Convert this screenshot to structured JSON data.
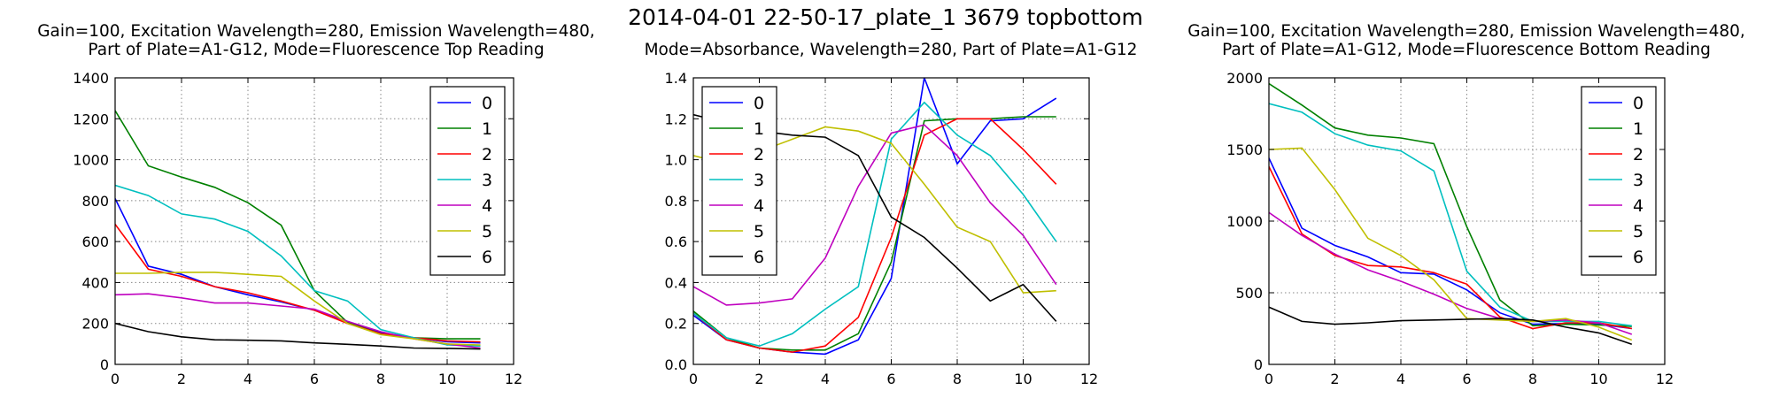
{
  "suptitle": "2014-04-01 22-50-17_plate_1 3679 topbottom",
  "chart_data": [
    {
      "type": "line",
      "title_lines": [
        "Gain=100, Excitation Wavelength=280, Emission Wavelength=480,",
        "Part of Plate=A1-G12, Mode=Fluorescence Top Reading"
      ],
      "xlim": [
        0,
        12
      ],
      "ylim": [
        0,
        1400
      ],
      "xticks": [
        0,
        2,
        4,
        6,
        8,
        10,
        12
      ],
      "yticks": [
        0,
        200,
        400,
        600,
        800,
        1000,
        1200,
        1400
      ],
      "grid": true,
      "legend_position": "top-right",
      "x": [
        0,
        1,
        2,
        3,
        4,
        5,
        6,
        7,
        8,
        9,
        10,
        11
      ],
      "series": [
        {
          "name": "0",
          "color": "#0000ff",
          "values": [
            810,
            480,
            440,
            380,
            340,
            305,
            265,
            210,
            155,
            130,
            110,
            105
          ]
        },
        {
          "name": "1",
          "color": "#008000",
          "values": [
            1240,
            970,
            915,
            865,
            790,
            680,
            360,
            205,
            150,
            130,
            125,
            125
          ]
        },
        {
          "name": "2",
          "color": "#ff0000",
          "values": [
            685,
            465,
            430,
            380,
            350,
            310,
            265,
            200,
            150,
            130,
            115,
            110
          ]
        },
        {
          "name": "3",
          "color": "#00bfbf",
          "values": [
            875,
            825,
            735,
            710,
            650,
            530,
            360,
            310,
            170,
            130,
            95,
            90
          ]
        },
        {
          "name": "4",
          "color": "#bf00bf",
          "values": [
            340,
            345,
            325,
            300,
            300,
            285,
            270,
            210,
            160,
            125,
            100,
            80
          ]
        },
        {
          "name": "5",
          "color": "#bfbf00",
          "values": [
            445,
            445,
            450,
            450,
            440,
            430,
            310,
            200,
            145,
            125,
            100,
            95
          ]
        },
        {
          "name": "6",
          "color": "#000000",
          "values": [
            200,
            160,
            135,
            120,
            118,
            115,
            105,
            98,
            90,
            80,
            78,
            75
          ]
        }
      ]
    },
    {
      "type": "line",
      "title_lines": [
        "Mode=Absorbance, Wavelength=280, Part of Plate=A1-G12"
      ],
      "xlim": [
        0,
        12
      ],
      "ylim": [
        0,
        1.4
      ],
      "xticks": [
        0,
        2,
        4,
        6,
        8,
        10,
        12
      ],
      "yticks": [
        0.0,
        0.2,
        0.4,
        0.6,
        0.8,
        1.0,
        1.2,
        1.4
      ],
      "grid": true,
      "legend_position": "top-left",
      "x": [
        0,
        1,
        2,
        3,
        4,
        5,
        6,
        7,
        8,
        9,
        10,
        11
      ],
      "series": [
        {
          "name": "0",
          "color": "#0000ff",
          "values": [
            0.24,
            0.12,
            0.08,
            0.06,
            0.05,
            0.12,
            0.42,
            1.4,
            0.98,
            1.19,
            1.2,
            1.3
          ]
        },
        {
          "name": "1",
          "color": "#008000",
          "values": [
            0.26,
            0.13,
            0.08,
            0.07,
            0.07,
            0.15,
            0.5,
            1.19,
            1.2,
            1.2,
            1.21,
            1.21
          ]
        },
        {
          "name": "2",
          "color": "#ff0000",
          "values": [
            0.25,
            0.12,
            0.08,
            0.06,
            0.09,
            0.23,
            0.62,
            1.12,
            1.2,
            1.2,
            1.05,
            0.88
          ]
        },
        {
          "name": "3",
          "color": "#00bfbf",
          "values": [
            0.25,
            0.13,
            0.09,
            0.15,
            0.27,
            0.38,
            1.1,
            1.28,
            1.12,
            1.02,
            0.83,
            0.6
          ]
        },
        {
          "name": "4",
          "color": "#bf00bf",
          "values": [
            0.38,
            0.29,
            0.3,
            0.32,
            0.52,
            0.87,
            1.13,
            1.17,
            1.02,
            0.79,
            0.63,
            0.39
          ]
        },
        {
          "name": "5",
          "color": "#bfbf00",
          "values": [
            1.02,
            0.98,
            1.04,
            1.1,
            1.16,
            1.14,
            1.08,
            0.88,
            0.67,
            0.6,
            0.35,
            0.36
          ]
        },
        {
          "name": "6",
          "color": "#000000",
          "values": [
            1.22,
            1.18,
            1.14,
            1.12,
            1.11,
            1.02,
            0.72,
            0.62,
            0.47,
            0.31,
            0.39,
            0.21
          ]
        }
      ]
    },
    {
      "type": "line",
      "title_lines": [
        "Gain=100, Excitation Wavelength=280, Emission Wavelength=480,",
        "Part of Plate=A1-G12, Mode=Fluorescence Bottom Reading"
      ],
      "xlim": [
        0,
        12
      ],
      "ylim": [
        0,
        2000
      ],
      "xticks": [
        0,
        2,
        4,
        6,
        8,
        10,
        12
      ],
      "yticks": [
        0,
        500,
        1000,
        1500,
        2000
      ],
      "grid": true,
      "legend_position": "top-right",
      "x": [
        0,
        1,
        2,
        3,
        4,
        5,
        6,
        7,
        8,
        9,
        10,
        11
      ],
      "series": [
        {
          "name": "0",
          "color": "#0000ff",
          "values": [
            1440,
            950,
            830,
            750,
            640,
            630,
            520,
            360,
            280,
            285,
            280,
            250
          ]
        },
        {
          "name": "1",
          "color": "#008000",
          "values": [
            1960,
            1810,
            1650,
            1600,
            1580,
            1540,
            960,
            450,
            270,
            280,
            275,
            265
          ]
        },
        {
          "name": "2",
          "color": "#ff0000",
          "values": [
            1380,
            910,
            760,
            690,
            680,
            640,
            560,
            330,
            250,
            290,
            290,
            250
          ]
        },
        {
          "name": "3",
          "color": "#00bfbf",
          "values": [
            1820,
            1760,
            1610,
            1530,
            1490,
            1350,
            650,
            400,
            300,
            300,
            300,
            270
          ]
        },
        {
          "name": "4",
          "color": "#bf00bf",
          "values": [
            1060,
            900,
            770,
            660,
            580,
            490,
            390,
            320,
            300,
            310,
            290,
            210
          ]
        },
        {
          "name": "5",
          "color": "#bfbf00",
          "values": [
            1500,
            1510,
            1220,
            880,
            760,
            590,
            320,
            310,
            300,
            320,
            260,
            170
          ]
        },
        {
          "name": "6",
          "color": "#000000",
          "values": [
            400,
            300,
            280,
            290,
            305,
            310,
            315,
            320,
            310,
            260,
            220,
            140
          ]
        }
      ]
    }
  ]
}
